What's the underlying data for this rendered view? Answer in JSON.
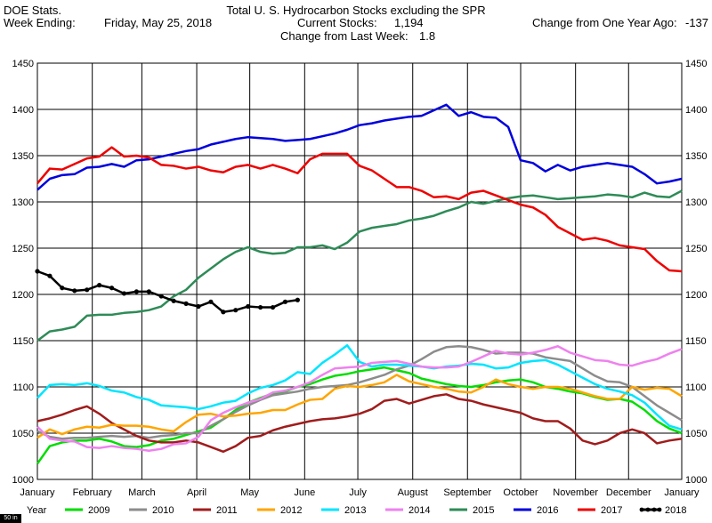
{
  "header": {
    "source": "DOE Stats.",
    "week_label": "Week Ending:",
    "week_date": "Friday, May 25, 2018",
    "title": "Total U. S. Hydrocarbon Stocks excluding the SPR",
    "current_label": "Current Stocks:",
    "current_value": "1,194",
    "change_week_label": "Change from Last Week:",
    "change_week_value": "1.8",
    "change_year_label": "Change from One Year Ago:",
    "change_year_value": "-137"
  },
  "footer_note": "50 in",
  "chart_data": {
    "type": "line",
    "title": "Total U. S. Hydrocarbon Stocks excluding the SPR",
    "xlabel": "",
    "ylabel": "",
    "ylim": [
      1000,
      1450
    ],
    "yticks": [
      1000,
      1050,
      1100,
      1150,
      1200,
      1250,
      1300,
      1350,
      1400,
      1450
    ],
    "xlim_weeks": [
      0,
      52
    ],
    "month_labels": [
      "January",
      "February",
      "March",
      "April",
      "May",
      "June",
      "July",
      "August",
      "September",
      "October",
      "November",
      "December",
      "January"
    ],
    "month_positions_weeks": [
      0,
      4.43,
      8.43,
      12.86,
      17.14,
      21.57,
      25.86,
      30.29,
      34.71,
      39,
      43.43,
      47.71,
      52
    ],
    "grid": true,
    "legend_title": "Year",
    "legend_position": "bottom",
    "series": [
      {
        "name": "2009",
        "color": "#00dd00",
        "values": [
          1017,
          1036,
          1040,
          1042,
          1042,
          1044,
          1041,
          1036,
          1035,
          1037,
          1042,
          1044,
          1048,
          1052,
          1056,
          1065,
          1075,
          1083,
          1088,
          1093,
          1095,
          1100,
          1103,
          1108,
          1112,
          1114,
          1117,
          1119,
          1121,
          1118,
          1115,
          1109,
          1106,
          1103,
          1101,
          1100,
          1102,
          1105,
          1107,
          1108,
          1105,
          1100,
          1098,
          1095,
          1093,
          1089,
          1086,
          1087,
          1084,
          1075,
          1063,
          1055,
          1050
        ]
      },
      {
        "name": "2010",
        "color": "#8c8c8c",
        "values": [
          1052,
          1046,
          1044,
          1045,
          1045,
          1046,
          1047,
          1046,
          1047,
          1045,
          1047,
          1048,
          1050,
          1050,
          1058,
          1065,
          1073,
          1080,
          1086,
          1091,
          1093,
          1095,
          1098,
          1100,
          1101,
          1102,
          1105,
          1109,
          1113,
          1119,
          1123,
          1130,
          1138,
          1143,
          1144,
          1143,
          1140,
          1136,
          1137,
          1137,
          1136,
          1132,
          1130,
          1128,
          1120,
          1112,
          1106,
          1105,
          1100,
          1090,
          1080,
          1072,
          1064
        ]
      },
      {
        "name": "2011",
        "color": "#a01c1c",
        "values": [
          1063,
          1066,
          1070,
          1075,
          1079,
          1071,
          1061,
          1054,
          1047,
          1042,
          1040,
          1040,
          1042,
          1040,
          1035,
          1030,
          1036,
          1045,
          1047,
          1053,
          1057,
          1060,
          1063,
          1065,
          1066,
          1068,
          1071,
          1076,
          1085,
          1087,
          1082,
          1086,
          1090,
          1092,
          1087,
          1085,
          1081,
          1078,
          1075,
          1072,
          1066,
          1063,
          1063,
          1055,
          1042,
          1038,
          1042,
          1050,
          1054,
          1050,
          1039,
          1042,
          1044
        ]
      },
      {
        "name": "2012",
        "color": "#ffa500",
        "values": [
          1045,
          1054,
          1049,
          1054,
          1057,
          1056,
          1059,
          1058,
          1058,
          1057,
          1054,
          1052,
          1062,
          1070,
          1071,
          1068,
          1069,
          1071,
          1072,
          1075,
          1075,
          1081,
          1086,
          1087,
          1098,
          1101,
          1100,
          1102,
          1105,
          1113,
          1106,
          1103,
          1100,
          1098,
          1095,
          1094,
          1100,
          1108,
          1103,
          1100,
          1098,
          1100,
          1100,
          1098,
          1094,
          1090,
          1087,
          1087,
          1100,
          1097,
          1099,
          1098,
          1090
        ]
      },
      {
        "name": "2013",
        "color": "#00e5ff",
        "values": [
          1088,
          1102,
          1103,
          1102,
          1104,
          1101,
          1096,
          1094,
          1089,
          1086,
          1080,
          1079,
          1078,
          1076,
          1079,
          1083,
          1085,
          1093,
          1099,
          1102,
          1107,
          1116,
          1114,
          1126,
          1135,
          1145,
          1127,
          1122,
          1124,
          1124,
          1123,
          1122,
          1120,
          1122,
          1123,
          1125,
          1124,
          1120,
          1121,
          1126,
          1128,
          1129,
          1124,
          1117,
          1110,
          1103,
          1098,
          1095,
          1091,
          1083,
          1070,
          1058,
          1054
        ]
      },
      {
        "name": "2014",
        "color": "#ee82ee",
        "values": [
          1057,
          1044,
          1042,
          1041,
          1035,
          1034,
          1036,
          1034,
          1033,
          1031,
          1033,
          1038,
          1039,
          1046,
          1064,
          1072,
          1078,
          1083,
          1087,
          1094,
          1096,
          1100,
          1105,
          1113,
          1120,
          1121,
          1122,
          1126,
          1127,
          1128,
          1125,
          1122,
          1121,
          1121,
          1122,
          1127,
          1133,
          1139,
          1136,
          1135,
          1137,
          1140,
          1144,
          1137,
          1133,
          1129,
          1128,
          1124,
          1123,
          1127,
          1130,
          1136,
          1141
        ]
      },
      {
        "name": "2015",
        "color": "#2e8b57",
        "values": [
          1150,
          1160,
          1162,
          1165,
          1177,
          1178,
          1178,
          1180,
          1181,
          1183,
          1187,
          1198,
          1205,
          1218,
          1228,
          1238,
          1246,
          1251,
          1246,
          1244,
          1245,
          1251,
          1251,
          1253,
          1249,
          1256,
          1268,
          1272,
          1274,
          1276,
          1280,
          1282,
          1285,
          1290,
          1294,
          1300,
          1298,
          1301,
          1304,
          1306,
          1307,
          1305,
          1303,
          1304,
          1305,
          1306,
          1308,
          1307,
          1305,
          1310,
          1306,
          1305,
          1312
        ]
      },
      {
        "name": "2016",
        "color": "#0000dd",
        "values": [
          1313,
          1325,
          1329,
          1330,
          1337,
          1338,
          1341,
          1338,
          1345,
          1346,
          1349,
          1352,
          1355,
          1357,
          1362,
          1365,
          1368,
          1370,
          1369,
          1368,
          1366,
          1367,
          1368,
          1371,
          1374,
          1378,
          1383,
          1385,
          1388,
          1390,
          1392,
          1393,
          1399,
          1405,
          1393,
          1397,
          1392,
          1391,
          1381,
          1345,
          1342,
          1333,
          1340,
          1334,
          1338,
          1340,
          1342,
          1340,
          1338,
          1330,
          1320,
          1322,
          1325
        ]
      },
      {
        "name": "2017",
        "color": "#ee0000",
        "values": [
          1320,
          1336,
          1335,
          1341,
          1347,
          1349,
          1359,
          1349,
          1350,
          1348,
          1340,
          1339,
          1336,
          1338,
          1334,
          1332,
          1338,
          1340,
          1336,
          1340,
          1336,
          1331,
          1346,
          1352,
          1352,
          1352,
          1339,
          1334,
          1325,
          1316,
          1316,
          1312,
          1305,
          1306,
          1303,
          1310,
          1312,
          1307,
          1302,
          1297,
          1294,
          1286,
          1273,
          1266,
          1259,
          1261,
          1258,
          1253,
          1251,
          1249,
          1236,
          1226,
          1225
        ]
      },
      {
        "name": "2018",
        "color": "#000000",
        "values": [
          1225,
          1220,
          1207,
          1204,
          1205,
          1210,
          1207,
          1201,
          1203,
          1203,
          1198,
          1193,
          1190,
          1187,
          1192,
          1181,
          1183,
          1187,
          1186,
          1186,
          1192,
          1194
        ]
      }
    ]
  }
}
